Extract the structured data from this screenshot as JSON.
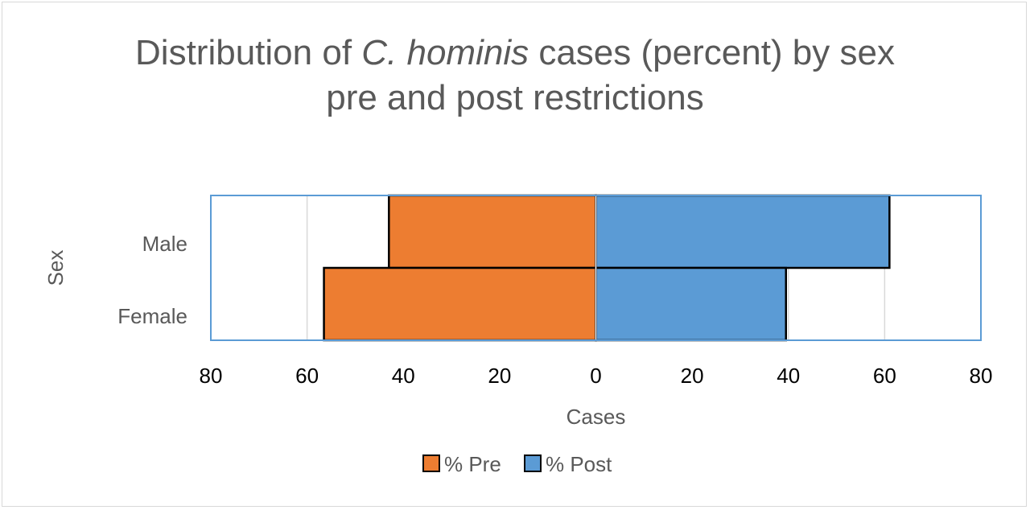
{
  "chart_data": {
    "type": "bar",
    "orientation": "horizontal",
    "layout": "butterfly",
    "title_pre": "Distribution of ",
    "title_italic": "C. hominis",
    "title_post": " cases (percent) by sex",
    "title_line2": "pre and post restrictions",
    "xlabel": "Cases",
    "ylabel": "Sex",
    "categories": [
      "Male",
      "Female"
    ],
    "xlim": [
      -80,
      80
    ],
    "xticks": [
      -80,
      -60,
      -40,
      -20,
      0,
      20,
      40,
      60,
      80
    ],
    "xtick_labels": [
      "80",
      "60",
      "40",
      "20",
      "0",
      "20",
      "40",
      "60",
      "80"
    ],
    "grid": true,
    "legend_position": "bottom",
    "series": [
      {
        "name": "% Pre",
        "side": "left",
        "color": "#ED7D31",
        "values": [
          43,
          56.5
        ]
      },
      {
        "name": "% Post",
        "side": "right",
        "color": "#5B9BD5",
        "values": [
          61,
          39.5
        ]
      }
    ],
    "plot_border_color": "#5B9BD5",
    "gridline_color": "#d9d9d9"
  }
}
